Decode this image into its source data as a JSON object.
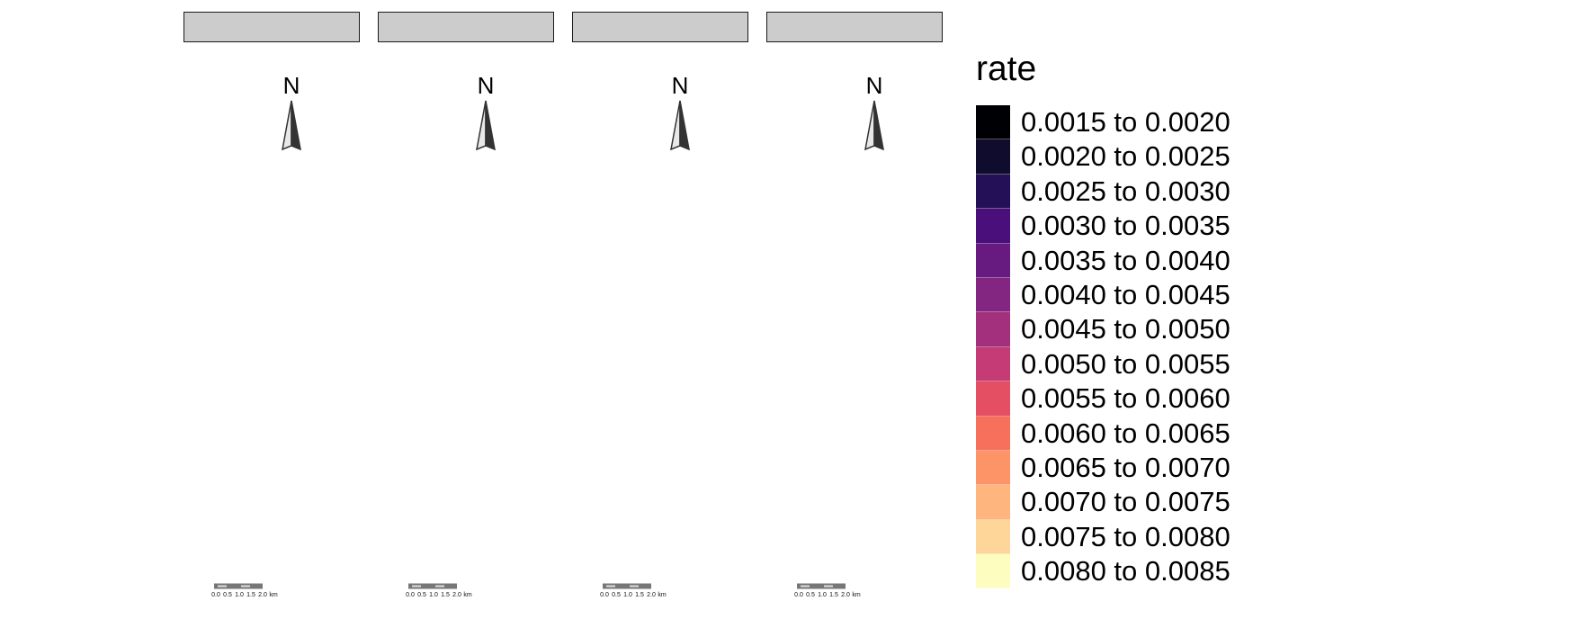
{
  "panels": [
    {
      "strip_label": "",
      "north_label": "N",
      "scale": {
        "ticks": [
          "0.0",
          "0.5",
          "1.0",
          "1.5",
          "2.0"
        ],
        "unit": "km"
      }
    },
    {
      "strip_label": "",
      "north_label": "N",
      "scale": {
        "ticks": [
          "0.0",
          "0.5",
          "1.0",
          "1.5",
          "2.0"
        ],
        "unit": "km"
      }
    },
    {
      "strip_label": "",
      "north_label": "N",
      "scale": {
        "ticks": [
          "0.0",
          "0.5",
          "1.0",
          "1.5",
          "2.0"
        ],
        "unit": "km"
      }
    },
    {
      "strip_label": "",
      "north_label": "N",
      "scale": {
        "ticks": [
          "0.0",
          "0.5",
          "1.0",
          "1.5",
          "2.0"
        ],
        "unit": "km"
      }
    }
  ],
  "legend": {
    "title": "rate",
    "items": [
      {
        "label": "0.0015 to 0.0020",
        "color": "#000004"
      },
      {
        "label": "0.0020 to 0.0025",
        "color": "#0F0C2D"
      },
      {
        "label": "0.0025 to 0.0030",
        "color": "#231057"
      },
      {
        "label": "0.0030 to 0.0035",
        "color": "#4A0F7A"
      },
      {
        "label": "0.0035 to 0.0040",
        "color": "#671A80"
      },
      {
        "label": "0.0040 to 0.0045",
        "color": "#832681"
      },
      {
        "label": "0.0045 to 0.0050",
        "color": "#A2307D"
      },
      {
        "label": "0.0050 to 0.0055",
        "color": "#C43B75"
      },
      {
        "label": "0.0055 to 0.0060",
        "color": "#E44F64"
      },
      {
        "label": "0.0060 to 0.0065",
        "color": "#F6705C"
      },
      {
        "label": "0.0065 to 0.0070",
        "color": "#FD9468"
      },
      {
        "label": "0.0070 to 0.0075",
        "color": "#FEB57E"
      },
      {
        "label": "0.0075 to 0.0080",
        "color": "#FFD69A"
      },
      {
        "label": "0.0080 to 0.0085",
        "color": "#FCFDBF"
      }
    ]
  }
}
